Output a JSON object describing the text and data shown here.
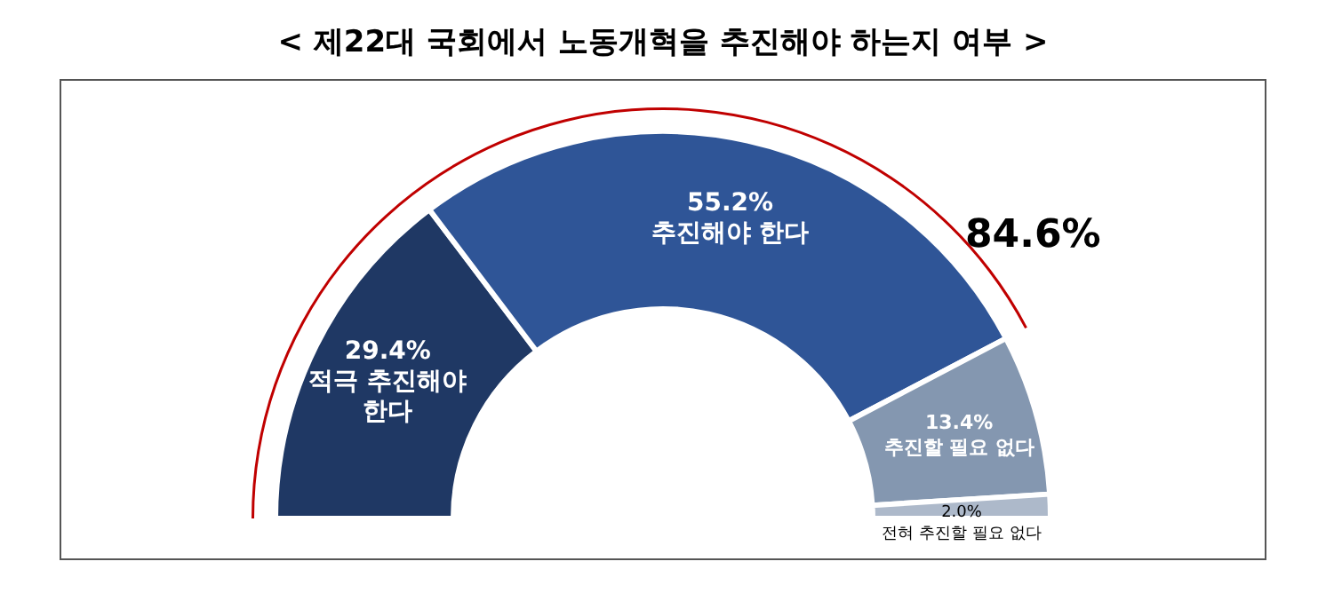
{
  "chart_data": {
    "type": "donut",
    "title": "< 제22대 국회에서 노동개혁을 추진해야 하는지 여부 >",
    "categories": [
      "적극 추진해야 한다",
      "추진해야 한다",
      "추진할 필요 없다",
      "전혀 추진할 필요 없다"
    ],
    "values": [
      29.4,
      55.2,
      13.4,
      2.0
    ],
    "colors": [
      "#1f3864",
      "#2f5597",
      "#8497b0",
      "#adb9ca"
    ],
    "value_labels": [
      "29.4%",
      "55.2%",
      "13.4%",
      "2.0%"
    ],
    "annotations": [
      "84.6%"
    ]
  }
}
